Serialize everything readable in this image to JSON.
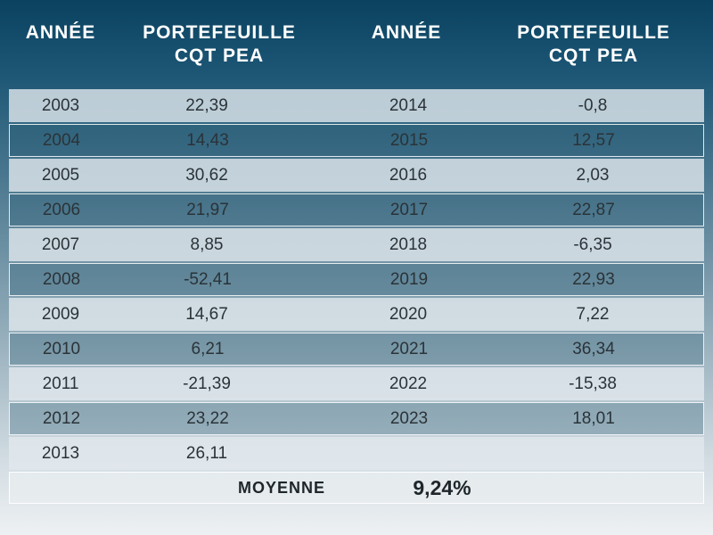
{
  "header": {
    "col1": "ANNÉE",
    "col2_line1": "PORTEFEUILLE",
    "col2_line2": "CQT PEA",
    "col3": "ANNÉE",
    "col4_line1": "PORTEFEUILLE",
    "col4_line2": "CQT PEA"
  },
  "rows": [
    {
      "year1": "2003",
      "val1": "22,39",
      "year2": "2014",
      "val2": "-0,8"
    },
    {
      "year1": "2004",
      "val1": "14,43",
      "year2": "2015",
      "val2": "12,57"
    },
    {
      "year1": "2005",
      "val1": "30,62",
      "year2": "2016",
      "val2": "2,03"
    },
    {
      "year1": "2006",
      "val1": "21,97",
      "year2": "2017",
      "val2": "22,87"
    },
    {
      "year1": "2007",
      "val1": "8,85",
      "year2": "2018",
      "val2": "-6,35"
    },
    {
      "year1": "2008",
      "val1": "-52,41",
      "year2": "2019",
      "val2": "22,93"
    },
    {
      "year1": "2009",
      "val1": "14,67",
      "year2": "2020",
      "val2": "7,22"
    },
    {
      "year1": "2010",
      "val1": "6,21",
      "year2": "2021",
      "val2": "36,34"
    },
    {
      "year1": "2011",
      "val1": "-21,39",
      "year2": "2022",
      "val2": "-15,38"
    },
    {
      "year1": "2012",
      "val1": "23,22",
      "year2": "2023",
      "val2": "18,01"
    },
    {
      "year1": "2013",
      "val1": "26,11",
      "year2": "",
      "val2": ""
    }
  ],
  "average": {
    "label": "MOYENNE",
    "value": "9,24%"
  }
}
